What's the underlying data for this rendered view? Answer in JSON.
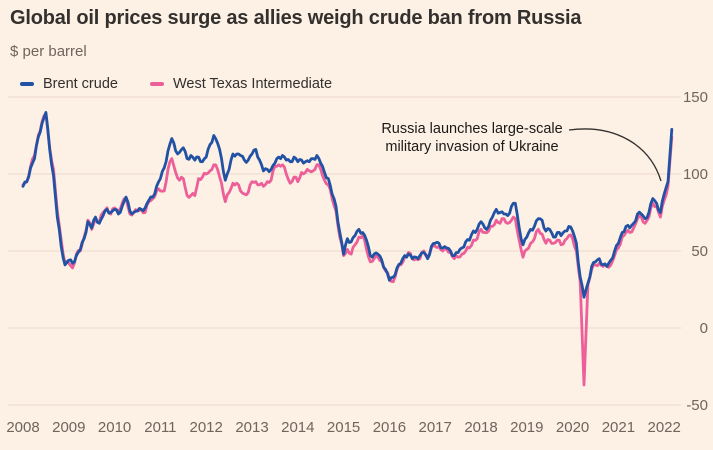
{
  "header": {
    "title": "Global oil prices surge as allies weigh crude ban from Russia",
    "subtitle": "$ per barrel"
  },
  "annotation": {
    "line1": "Russia launches large-scale",
    "line2": "military invasion of Ukraine"
  },
  "colors": {
    "background": "#fdf0e5",
    "title_text": "#33302e",
    "axis_text": "#6f655c",
    "gridline": "#eadaca",
    "annotation_line": "#33302e",
    "brent": "#2152a3",
    "wti": "#ed5f98"
  },
  "chart_data": {
    "type": "line",
    "title": "Global oil prices surge as allies weigh crude ban from Russia",
    "ylabel": "$ per barrel",
    "x_unit": "monthly",
    "x_start": 2008.0,
    "x_end": 2022.1667,
    "x_ticks": [
      2008,
      2009,
      2010,
      2011,
      2012,
      2013,
      2014,
      2015,
      2016,
      2017,
      2018,
      2019,
      2020,
      2021,
      2022
    ],
    "y_ticks": [
      150,
      100,
      50,
      0,
      -50
    ],
    "ylim": [
      -50,
      150
    ],
    "grid": "horizontal",
    "legend_position": "top-left",
    "annotation": {
      "text": "Russia launches large-scale military invasion of Ukraine",
      "points_to": {
        "x": 2022.15,
        "y": 100
      }
    },
    "series": [
      {
        "name": "Brent crude",
        "color": "#2152a3",
        "values": [
          92,
          95,
          104,
          110,
          124,
          133,
          140,
          116,
          99,
          72,
          53,
          41,
          44,
          42,
          47,
          51,
          58,
          69,
          65,
          72,
          68,
          73,
          77,
          75,
          77,
          74,
          79,
          85,
          76,
          75,
          76,
          77,
          78,
          83,
          85,
          92,
          97,
          104,
          115,
          123,
          115,
          114,
          117,
          110,
          112,
          109,
          111,
          108,
          111,
          119,
          125,
          120,
          110,
          96,
          103,
          113,
          113,
          112,
          109,
          109,
          113,
          116,
          109,
          102,
          103,
          103,
          107,
          111,
          112,
          109,
          108,
          111,
          108,
          109,
          108,
          108,
          110,
          112,
          107,
          101,
          97,
          87,
          79,
          62,
          48,
          58,
          56,
          60,
          64,
          62,
          57,
          47,
          48,
          48,
          44,
          38,
          31,
          33,
          39,
          42,
          47,
          48,
          45,
          46,
          47,
          49,
          45,
          53,
          55,
          55,
          52,
          52,
          50,
          47,
          49,
          52,
          56,
          57,
          63,
          64,
          69,
          65,
          66,
          72,
          77,
          75,
          74,
          73,
          79,
          81,
          65,
          54,
          59,
          64,
          66,
          71,
          70,
          63,
          64,
          59,
          62,
          60,
          63,
          66,
          63,
          55,
          33,
          20,
          29,
          40,
          43,
          45,
          41,
          40,
          44,
          50,
          55,
          62,
          66,
          65,
          68,
          74,
          74,
          71,
          75,
          84,
          81,
          75,
          87,
          95,
          129
        ]
      },
      {
        "name": "West Texas Intermediate",
        "color": "#ed5f98",
        "values": [
          93,
          95,
          105,
          112,
          125,
          134,
          139,
          117,
          103,
          76,
          57,
          42,
          42,
          39,
          48,
          50,
          59,
          70,
          64,
          71,
          69,
          75,
          78,
          74,
          78,
          76,
          81,
          84,
          74,
          75,
          76,
          77,
          75,
          82,
          84,
          89,
          89,
          89,
          103,
          110,
          101,
          96,
          97,
          86,
          86,
          86,
          97,
          98,
          100,
          102,
          106,
          103,
          94,
          82,
          88,
          94,
          94,
          89,
          87,
          88,
          95,
          95,
          93,
          92,
          95,
          96,
          105,
          106,
          106,
          100,
          94,
          98,
          95,
          101,
          101,
          102,
          102,
          106,
          103,
          96,
          93,
          84,
          76,
          59,
          47,
          51,
          48,
          54,
          59,
          60,
          51,
          43,
          45,
          46,
          43,
          37,
          32,
          30,
          38,
          41,
          46,
          49,
          45,
          45,
          45,
          50,
          46,
          52,
          53,
          53,
          50,
          51,
          49,
          45,
          46,
          48,
          50,
          52,
          57,
          58,
          64,
          62,
          63,
          66,
          70,
          68,
          71,
          68,
          70,
          71,
          57,
          46,
          51,
          55,
          58,
          64,
          61,
          55,
          57,
          55,
          57,
          54,
          57,
          60,
          58,
          50,
          30,
          -37,
          28,
          38,
          41,
          42,
          40,
          40,
          41,
          47,
          52,
          59,
          62,
          62,
          65,
          71,
          72,
          68,
          72,
          81,
          79,
          72,
          83,
          92,
          124
        ]
      }
    ]
  }
}
